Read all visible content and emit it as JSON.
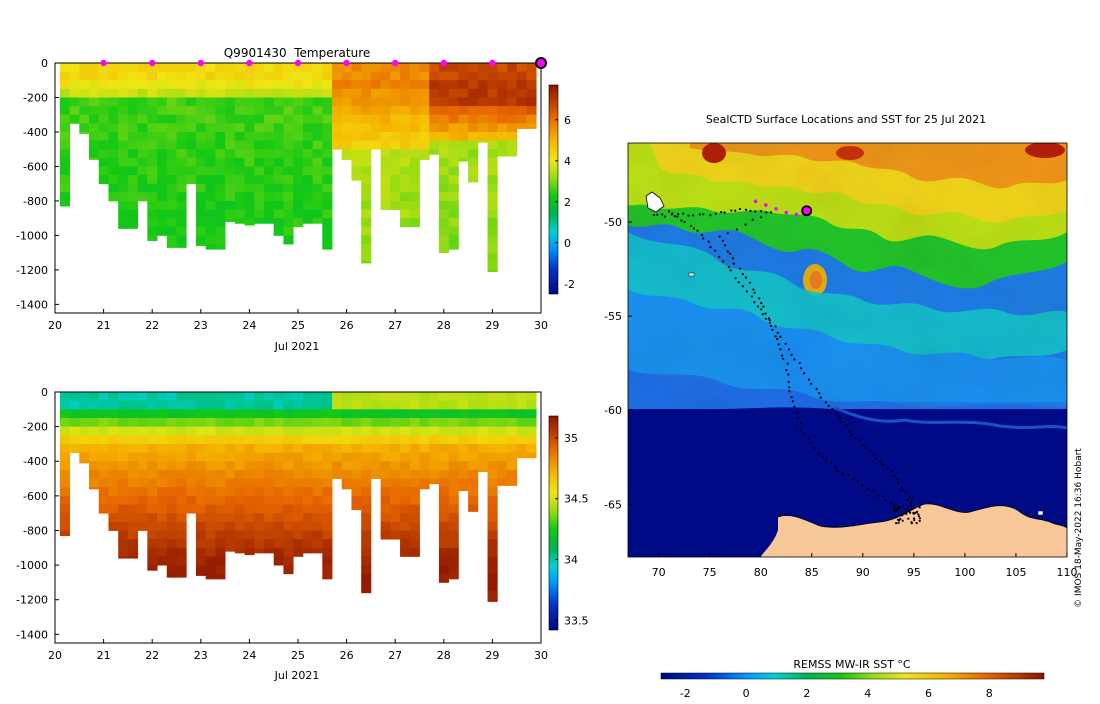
{
  "chart_data": [
    {
      "type": "heatmap",
      "title": "Q9901430  Temperature",
      "xlabel": "Jul 2021",
      "ylabel": "",
      "xlim": [
        20,
        30
      ],
      "ylim": [
        -1450,
        0
      ],
      "xticks": [
        "20",
        "21",
        "22",
        "23",
        "24",
        "25",
        "26",
        "27",
        "28",
        "29",
        "30"
      ],
      "yticks": [
        "0",
        "-200",
        "-400",
        "-600",
        "-800",
        "-1000",
        "-1200",
        "-1400"
      ],
      "colorbar": {
        "min": -2.5,
        "max": 7.7,
        "ticks": [
          "-2",
          "0",
          "2",
          "4",
          "6"
        ]
      },
      "surface_markers_day": [
        21,
        22,
        23,
        24,
        25,
        26,
        27,
        28,
        29
      ],
      "current_position_day": 30,
      "profiles": [
        {
          "day": 20.2,
          "depth": 830
        },
        {
          "day": 20.4,
          "depth": 350
        },
        {
          "day": 20.6,
          "depth": 410
        },
        {
          "day": 20.8,
          "depth": 560
        },
        {
          "day": 21.0,
          "depth": 700
        },
        {
          "day": 21.2,
          "depth": 800
        },
        {
          "day": 21.4,
          "depth": 960
        },
        {
          "day": 21.6,
          "depth": 960
        },
        {
          "day": 21.8,
          "depth": 800
        },
        {
          "day": 22.0,
          "depth": 1030
        },
        {
          "day": 22.2,
          "depth": 1000
        },
        {
          "day": 22.4,
          "depth": 1070
        },
        {
          "day": 22.6,
          "depth": 1070
        },
        {
          "day": 22.8,
          "depth": 700
        },
        {
          "day": 23.0,
          "depth": 1060
        },
        {
          "day": 23.2,
          "depth": 1080
        },
        {
          "day": 23.4,
          "depth": 1080
        },
        {
          "day": 23.6,
          "depth": 920
        },
        {
          "day": 23.8,
          "depth": 930
        },
        {
          "day": 24.0,
          "depth": 940
        },
        {
          "day": 24.2,
          "depth": 930
        },
        {
          "day": 24.4,
          "depth": 930
        },
        {
          "day": 24.6,
          "depth": 1000
        },
        {
          "day": 24.8,
          "depth": 1050
        },
        {
          "day": 25.0,
          "depth": 950
        },
        {
          "day": 25.2,
          "depth": 930
        },
        {
          "day": 25.4,
          "depth": 930
        },
        {
          "day": 25.6,
          "depth": 1080
        },
        {
          "day": 25.8,
          "depth": 500
        },
        {
          "day": 26.0,
          "depth": 560
        },
        {
          "day": 26.2,
          "depth": 680
        },
        {
          "day": 26.4,
          "depth": 1160
        },
        {
          "day": 26.6,
          "depth": 500
        },
        {
          "day": 26.8,
          "depth": 850
        },
        {
          "day": 27.0,
          "depth": 850
        },
        {
          "day": 27.2,
          "depth": 950
        },
        {
          "day": 27.4,
          "depth": 950
        },
        {
          "day": 27.6,
          "depth": 560
        },
        {
          "day": 27.8,
          "depth": 530
        },
        {
          "day": 28.0,
          "depth": 1100
        },
        {
          "day": 28.2,
          "depth": 1080
        },
        {
          "day": 28.4,
          "depth": 570
        },
        {
          "day": 28.6,
          "depth": 690
        },
        {
          "day": 28.8,
          "depth": 460
        },
        {
          "day": 29.0,
          "depth": 1210
        },
        {
          "day": 29.2,
          "depth": 540
        },
        {
          "day": 29.4,
          "depth": 540
        },
        {
          "day": 29.6,
          "depth": 380
        },
        {
          "day": 29.8,
          "depth": 380
        }
      ]
    },
    {
      "type": "heatmap",
      "title": "",
      "xlabel": "Jul 2021",
      "ylabel": "",
      "xlim": [
        20,
        30
      ],
      "ylim": [
        -1450,
        0
      ],
      "xticks": [
        "20",
        "21",
        "22",
        "23",
        "24",
        "25",
        "26",
        "27",
        "28",
        "29",
        "30"
      ],
      "yticks": [
        "0",
        "-200",
        "-400",
        "-600",
        "-800",
        "-1000",
        "-1200",
        "-1400"
      ],
      "colorbar": {
        "min": 33.42,
        "max": 35.18,
        "ticks": [
          "33.5",
          "34",
          "34.5",
          "35"
        ]
      }
    },
    {
      "type": "heatmap",
      "title": "SealCTD Surface Locations and SST for 25 Jul 2021",
      "xlabel": "",
      "ylabel": "",
      "xlim": [
        67,
        110
      ],
      "ylim": [
        -67.8,
        -45.8
      ],
      "xticks": [
        "70",
        "75",
        "80",
        "85",
        "90",
        "95",
        "100",
        "105",
        "110"
      ],
      "yticks": [
        "-50",
        "-55",
        "-60",
        "-65"
      ],
      "colorbar_label": "REMSS MW-IR SST °C",
      "colorbar": {
        "min": -2.8,
        "max": 9.8,
        "ticks": [
          "-2",
          "0",
          "2",
          "4",
          "6",
          "8"
        ]
      },
      "current_position": {
        "lon": 84.5,
        "lat": -49.4
      },
      "recent_track": [
        [
          79.5,
          -48.9
        ],
        [
          80.5,
          -49.1
        ],
        [
          81.5,
          -49.3
        ],
        [
          82.5,
          -49.5
        ],
        [
          83.5,
          -49.6
        ],
        [
          84.5,
          -49.4
        ]
      ]
    }
  ],
  "credit": "© IMOS 18-May-2022 16:36 Hobart"
}
